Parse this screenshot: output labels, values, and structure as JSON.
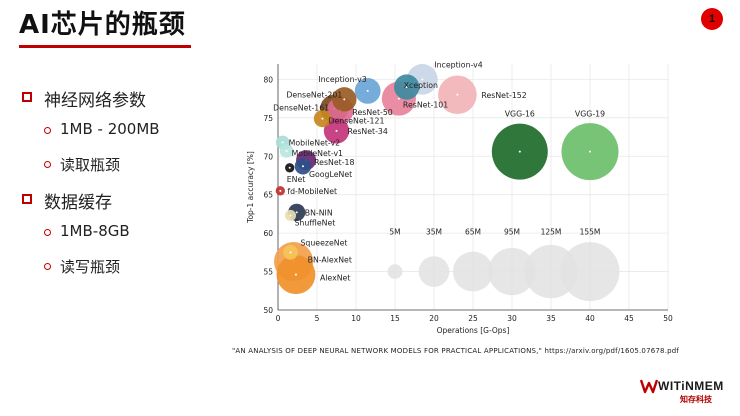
{
  "slide": {
    "title": "AI芯片的瓶颈",
    "page_number": "1",
    "bullets": [
      {
        "text": "神经网络参数",
        "subs": [
          "1MB - 200MB",
          "读取瓶颈"
        ]
      },
      {
        "text": "数据缓存",
        "subs": [
          "1MB-8GB",
          "读写瓶颈"
        ]
      }
    ],
    "citation": "\"AN ANALYSIS OF DEEP NEURAL NETWORK MODELS FOR PRACTICAL APPLICATIONS,\"   https://arxiv.org/pdf/1605.07678.pdf",
    "logo": {
      "name": "WITiNMEM",
      "subtitle": "知存科技"
    }
  },
  "chart_data": {
    "type": "scatter",
    "title": "",
    "xlabel": "Operations [G-Ops]",
    "ylabel": "Top-1 accuracy [%]",
    "xlim": [
      0,
      50
    ],
    "ylim": [
      50,
      82
    ],
    "xticks": [
      0,
      5,
      10,
      15,
      20,
      25,
      30,
      35,
      40,
      45,
      50
    ],
    "yticks": [
      50,
      55,
      60,
      65,
      70,
      75,
      80
    ],
    "grid": true,
    "points": [
      {
        "label": "Inception-v4",
        "x": 18.5,
        "y": 80.0,
        "size_mb": 35,
        "color": "#c9d6e6"
      },
      {
        "label": "Inception-v3",
        "x": 11.5,
        "y": 78.5,
        "size_mb": 23,
        "color": "#6aa5d6"
      },
      {
        "label": "Xception",
        "x": 16.5,
        "y": 79.0,
        "size_mb": 22,
        "color": "#3e8aa0"
      },
      {
        "label": "ResNet-152",
        "x": 23.0,
        "y": 78.0,
        "size_mb": 60,
        "color": "#f2b4b8"
      },
      {
        "label": "ResNet-101",
        "x": 15.5,
        "y": 77.5,
        "size_mb": 45,
        "color": "#e8829b"
      },
      {
        "label": "DenseNet-201",
        "x": 8.5,
        "y": 77.4,
        "size_mb": 20,
        "color": "#9a5b24"
      },
      {
        "label": "DenseNet-161",
        "x": 7.2,
        "y": 76.2,
        "size_mb": 28,
        "color": "#7a4a1e"
      },
      {
        "label": "ResNet-50",
        "x": 8.0,
        "y": 76.0,
        "size_mb": 25,
        "color": "#e06b91"
      },
      {
        "label": "DenseNet-121",
        "x": 5.7,
        "y": 74.9,
        "size_mb": 8,
        "color": "#c8861e"
      },
      {
        "label": "ResNet-34",
        "x": 7.5,
        "y": 73.3,
        "size_mb": 22,
        "color": "#c3347a"
      },
      {
        "label": "MobileNet-v2",
        "x": 0.6,
        "y": 71.8,
        "size_mb": 4,
        "color": "#a8ddd6"
      },
      {
        "label": "MobileNet-v1",
        "x": 1.1,
        "y": 70.7,
        "size_mb": 4,
        "color": "#b8e6df"
      },
      {
        "label": "ResNet-18",
        "x": 3.6,
        "y": 69.5,
        "size_mb": 12,
        "color": "#6a2570"
      },
      {
        "label": "GoogLeNet",
        "x": 3.2,
        "y": 68.7,
        "size_mb": 7,
        "color": "#2f4f8a"
      },
      {
        "label": "ENet",
        "x": 1.5,
        "y": 68.5,
        "size_mb": 1,
        "color": "#111111"
      },
      {
        "label": "fd-MobileNet",
        "x": 0.3,
        "y": 65.5,
        "size_mb": 1,
        "color": "#c03030"
      },
      {
        "label": "BN-NIN",
        "x": 2.4,
        "y": 62.7,
        "size_mb": 8,
        "color": "#2a3a55"
      },
      {
        "label": "ShuffleNet",
        "x": 1.6,
        "y": 62.3,
        "size_mb": 2,
        "color": "#e8e0b0"
      },
      {
        "label": "VGG-16",
        "x": 31.0,
        "y": 70.6,
        "size_mb": 138,
        "color": "#1e6b2a"
      },
      {
        "label": "VGG-19",
        "x": 40.0,
        "y": 70.6,
        "size_mb": 144,
        "color": "#6dbf6a"
      },
      {
        "label": "SqueezeNet",
        "x": 1.6,
        "y": 57.5,
        "size_mb": 5,
        "color": "#f5c45a"
      },
      {
        "label": "BN-AlexNet",
        "x": 2.0,
        "y": 56.3,
        "size_mb": 62,
        "color": "#f2a04a"
      },
      {
        "label": "AlexNet",
        "x": 2.3,
        "y": 54.6,
        "size_mb": 61,
        "color": "#f0902a"
      }
    ],
    "size_legend": [
      {
        "label": "5M",
        "x": 15,
        "y": 55,
        "size_mb": 5
      },
      {
        "label": "35M",
        "x": 20,
        "y": 55,
        "size_mb": 35
      },
      {
        "label": "65M",
        "x": 25,
        "y": 55,
        "size_mb": 65
      },
      {
        "label": "95M",
        "x": 30,
        "y": 55,
        "size_mb": 95
      },
      {
        "label": "125M",
        "x": 35,
        "y": 55,
        "size_mb": 125
      },
      {
        "label": "155M",
        "x": 40,
        "y": 55,
        "size_mb": 155
      }
    ]
  }
}
